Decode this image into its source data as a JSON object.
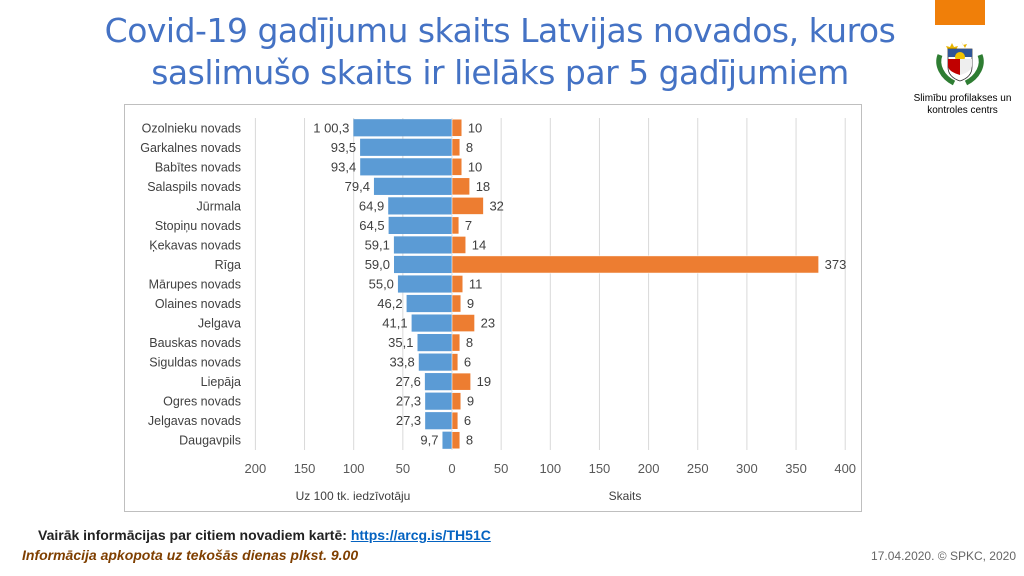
{
  "header": {
    "title_line1": "Covid-19 gadījumu skaits Latvijas novados, kuros",
    "title_line2": "saslimušo skaits ir lielāks par 5 gadījumiem"
  },
  "logo": {
    "text_line1": "Slimību profilakses un",
    "text_line2": "kontroles centrs",
    "icon": "latvia-coat-of-arms"
  },
  "chart_data": {
    "type": "bar",
    "orientation": "horizontal-butterfly",
    "categories": [
      "Ozolnieku novads",
      "Garkalnes novads",
      "Babītes novads",
      "Salaspils novads",
      "Jūrmala",
      "Stopiņu novads",
      "Ķekavas novads",
      "Rīga",
      "Mārupes novads",
      "Olaines novads",
      "Jelgava",
      "Bauskas novads",
      "Siguldas novads",
      "Liepāja",
      "Ogres novads",
      "Jelgavas novads",
      "Daugavpils"
    ],
    "series": [
      {
        "values": [
          100.3,
          93.5,
          93.4,
          79.4,
          64.9,
          64.5,
          59.1,
          59.0,
          55.0,
          46.2,
          41.1,
          35.1,
          33.8,
          27.6,
          27.3,
          27.3,
          9.7
        ],
        "labels": [
          "1 00,3",
          "93,5",
          "93,4",
          "79,4",
          "64,9",
          "64,5",
          "59,1",
          "59,0",
          "55,0",
          "46,2",
          "41,1",
          "35,1",
          "33,8",
          "27,6",
          "27,3",
          "27,3",
          "9,7"
        ],
        "color": "#5B9BD5",
        "xlabel": "Uz 100 tk. iedzīvotāju",
        "xlim": [
          200,
          0
        ],
        "ticks": [
          "200",
          "150",
          "100",
          "50",
          "0"
        ]
      },
      {
        "values": [
          10,
          8,
          10,
          18,
          32,
          7,
          14,
          373,
          11,
          9,
          23,
          8,
          6,
          19,
          9,
          6,
          8
        ],
        "color": "#ED7D31",
        "xlabel": "Skaits",
        "xlim": [
          0,
          400
        ],
        "ticks": [
          "0",
          "50",
          "100",
          "150",
          "200",
          "250",
          "300",
          "350",
          "400"
        ]
      }
    ],
    "grid": true
  },
  "footer": {
    "info_text": "Vairāk informācijas par citiem novadiem kartē: ",
    "info_link": "https://arcg.is/TH51C",
    "note": "Informācija apkopota uz tekošās dienas plkst. 9.00",
    "date_credit": "17.04.2020. © SPKC, 2020"
  }
}
